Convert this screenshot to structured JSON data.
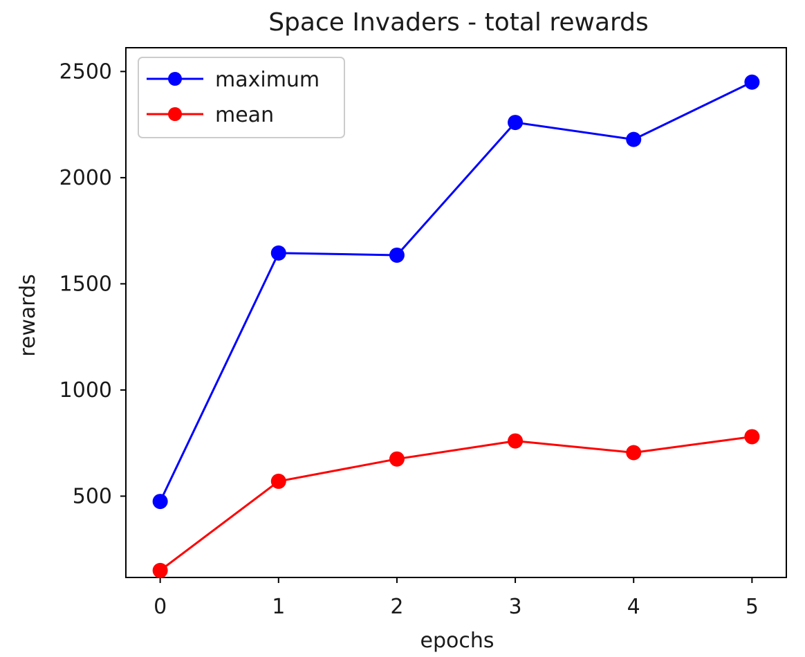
{
  "chart_data": {
    "type": "line",
    "title": "Space Invaders - total rewards",
    "xlabel": "epochs",
    "ylabel": "rewards",
    "x": [
      0,
      1,
      2,
      3,
      4,
      5
    ],
    "xticks": [
      "0",
      "1",
      "2",
      "3",
      "4",
      "5"
    ],
    "yticks": [
      500,
      1000,
      1500,
      2000,
      2500
    ],
    "ytick_labels": [
      "500",
      "1000",
      "1500",
      "2000",
      "2500"
    ],
    "xlim": [
      -0.29,
      5.29
    ],
    "ylim": [
      117,
      2612
    ],
    "grid": false,
    "legend_position": "upper-left",
    "series": [
      {
        "name": "maximum",
        "color": "#0000ff",
        "marker": "circle",
        "values": [
          475,
          1645,
          1635,
          2260,
          2180,
          2450
        ]
      },
      {
        "name": "mean",
        "color": "#ff0000",
        "marker": "circle",
        "values": [
          150,
          570,
          675,
          760,
          705,
          780
        ]
      }
    ]
  }
}
